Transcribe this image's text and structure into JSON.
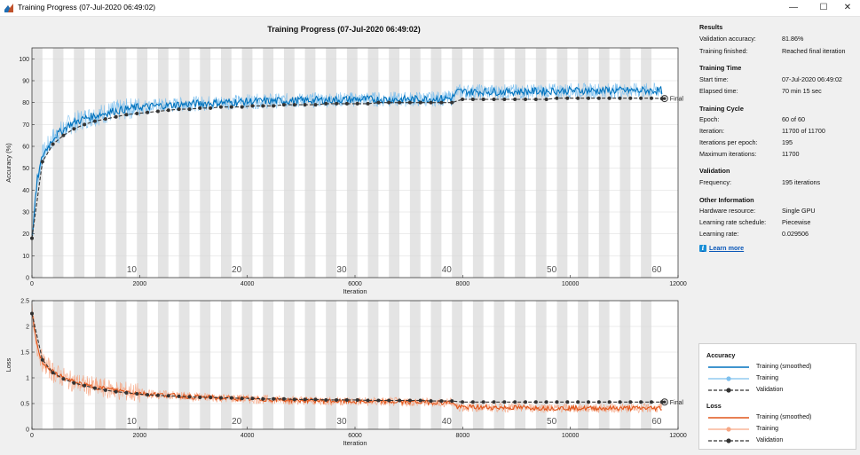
{
  "window": {
    "title": "Training Progress (07-Jul-2020 06:49:02)",
    "minimize_glyph": "—",
    "maximize_glyph": "☐",
    "close_glyph": "✕"
  },
  "plot_title": "Training Progress (07-Jul-2020 06:49:02)",
  "results": {
    "title": "Results",
    "rows": [
      {
        "label": "Validation accuracy:",
        "value": "81.86%"
      },
      {
        "label": "Training finished:",
        "value": "Reached final iteration"
      }
    ]
  },
  "training_time": {
    "title": "Training Time",
    "rows": [
      {
        "label": "Start time:",
        "value": "07-Jul-2020 06:49:02"
      },
      {
        "label": "Elapsed time:",
        "value": "70 min 15 sec"
      }
    ]
  },
  "training_cycle": {
    "title": "Training Cycle",
    "rows": [
      {
        "label": "Epoch:",
        "value": "60 of 60"
      },
      {
        "label": "Iteration:",
        "value": "11700 of 11700"
      },
      {
        "label": "Iterations per epoch:",
        "value": "195"
      },
      {
        "label": "Maximum iterations:",
        "value": "11700"
      }
    ]
  },
  "validation": {
    "title": "Validation",
    "rows": [
      {
        "label": "Frequency:",
        "value": "195 iterations"
      }
    ]
  },
  "other_info": {
    "title": "Other Information",
    "rows": [
      {
        "label": "Hardware resource:",
        "value": "Single GPU"
      },
      {
        "label": "Learning rate schedule:",
        "value": "Piecewise"
      },
      {
        "label": "Learning rate:",
        "value": "0.029506"
      }
    ]
  },
  "learn_more": "Learn more",
  "legend": {
    "accuracy_title": "Accuracy",
    "loss_title": "Loss",
    "smoothed": "Training (smoothed)",
    "training": "Training",
    "validation": "Validation"
  },
  "colors": {
    "accuracy_smoothed": "#0072bd",
    "accuracy_raw": "#7ec0ee",
    "loss_smoothed": "#e0561b",
    "loss_raw": "#f6a785",
    "validation": "#333333",
    "epoch_band": "#e4e4e4"
  },
  "chart_data": [
    {
      "type": "line",
      "xlabel": "Iteration",
      "ylabel": "Accuracy (%)",
      "xlim": [
        0,
        12000
      ],
      "ylim": [
        0,
        105
      ],
      "x_ticks": [
        0,
        2000,
        4000,
        6000,
        8000,
        10000,
        12000
      ],
      "y_ticks": [
        0,
        10,
        20,
        30,
        40,
        50,
        60,
        70,
        80,
        90,
        100
      ],
      "epoch_labels": [
        10,
        20,
        30,
        40,
        50,
        60
      ],
      "epochs": 60,
      "iterations_per_epoch": 195,
      "final_label": "Final",
      "series": [
        {
          "name": "Training (smoothed)",
          "x": [
            0,
            100,
            200,
            400,
            700,
            1000,
            1500,
            2000,
            3000,
            4000,
            5000,
            6000,
            7000,
            7800,
            7900,
            9000,
            10000,
            11000,
            11700
          ],
          "values": [
            18,
            45,
            56,
            64,
            70,
            73,
            76,
            78,
            79.5,
            80.5,
            81,
            81.5,
            81.5,
            82,
            85,
            85,
            85.5,
            85.5,
            85.5
          ]
        },
        {
          "name": "Validation",
          "x": [
            0,
            195,
            390,
            585,
            780,
            975,
            1170,
            1365,
            1560,
            1755,
            1950,
            2145,
            2340,
            2535,
            2730,
            2925,
            3120,
            3315,
            3510,
            3705,
            3900,
            4095,
            4290,
            4485,
            4680,
            4875,
            5070,
            5265,
            5460,
            5655,
            5850,
            6045,
            6240,
            6435,
            6630,
            6825,
            7020,
            7215,
            7410,
            7605,
            7800,
            7995,
            8190,
            8385,
            8580,
            8775,
            8970,
            9165,
            9360,
            9555,
            9750,
            9945,
            10140,
            10335,
            10530,
            10725,
            10920,
            11115,
            11310,
            11505,
            11700
          ],
          "values": [
            18,
            53,
            61,
            65,
            68,
            70,
            71.5,
            72.5,
            73.5,
            74.5,
            75,
            75.5,
            76,
            76.5,
            77,
            77,
            77.5,
            77.5,
            78,
            78,
            78,
            78.5,
            78.5,
            78.5,
            79,
            79,
            79,
            79,
            79.5,
            79.5,
            79.5,
            79.5,
            79.5,
            80,
            80,
            80,
            80,
            80,
            80,
            80,
            80,
            81.5,
            81.5,
            81.5,
            81.5,
            81.5,
            81.5,
            81.5,
            81.5,
            81.5,
            82,
            82,
            82,
            82,
            82,
            82,
            82,
            82,
            82,
            82,
            81.86
          ]
        }
      ]
    },
    {
      "type": "line",
      "xlabel": "Iteration",
      "ylabel": "Loss",
      "xlim": [
        0,
        12000
      ],
      "ylim": [
        0,
        2.5
      ],
      "x_ticks": [
        0,
        2000,
        4000,
        6000,
        8000,
        10000,
        12000
      ],
      "y_ticks": [
        0,
        0.5,
        1,
        1.5,
        2,
        2.5
      ],
      "epoch_labels": [
        10,
        20,
        30,
        40,
        50,
        60
      ],
      "epochs": 60,
      "iterations_per_epoch": 195,
      "final_label": "Final",
      "series": [
        {
          "name": "Training (smoothed)",
          "x": [
            0,
            100,
            200,
            400,
            700,
            1000,
            1500,
            2000,
            3000,
            4000,
            5000,
            6000,
            7000,
            7800,
            7900,
            9000,
            10000,
            11000,
            11700
          ],
          "values": [
            2.25,
            1.6,
            1.3,
            1.1,
            0.95,
            0.85,
            0.77,
            0.7,
            0.63,
            0.59,
            0.56,
            0.54,
            0.53,
            0.52,
            0.43,
            0.42,
            0.41,
            0.41,
            0.41
          ]
        },
        {
          "name": "Validation",
          "x": [
            0,
            195,
            390,
            585,
            780,
            975,
            1170,
            1365,
            1560,
            1755,
            1950,
            2145,
            2340,
            2535,
            2730,
            2925,
            3120,
            3315,
            3510,
            3705,
            3900,
            4095,
            4290,
            4485,
            4680,
            4875,
            5070,
            5265,
            5460,
            5655,
            5850,
            6045,
            6240,
            6435,
            6630,
            6825,
            7020,
            7215,
            7410,
            7605,
            7800,
            7995,
            8190,
            8385,
            8580,
            8775,
            8970,
            9165,
            9360,
            9555,
            9750,
            9945,
            10140,
            10335,
            10530,
            10725,
            10920,
            11115,
            11310,
            11505,
            11700
          ],
          "values": [
            2.25,
            1.35,
            1.1,
            0.98,
            0.9,
            0.85,
            0.8,
            0.76,
            0.73,
            0.71,
            0.69,
            0.67,
            0.66,
            0.65,
            0.64,
            0.63,
            0.62,
            0.62,
            0.61,
            0.61,
            0.6,
            0.6,
            0.59,
            0.59,
            0.59,
            0.58,
            0.58,
            0.58,
            0.57,
            0.57,
            0.57,
            0.57,
            0.56,
            0.56,
            0.56,
            0.56,
            0.56,
            0.56,
            0.55,
            0.55,
            0.55,
            0.53,
            0.53,
            0.53,
            0.53,
            0.53,
            0.53,
            0.53,
            0.53,
            0.53,
            0.53,
            0.53,
            0.53,
            0.53,
            0.53,
            0.53,
            0.53,
            0.53,
            0.53,
            0.53,
            0.53
          ]
        }
      ]
    }
  ]
}
